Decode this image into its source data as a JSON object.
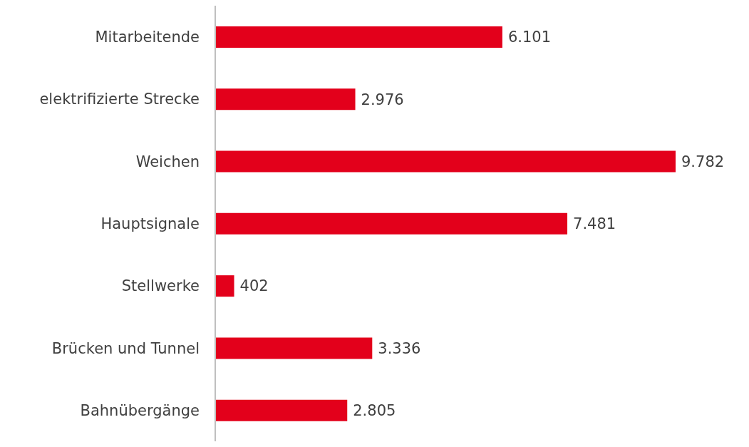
{
  "chart_data": {
    "type": "bar",
    "orientation": "horizontal",
    "categories": [
      "Mitarbeitende",
      "elektrifizierte Strecke",
      "Weichen",
      "Hauptsignale",
      "Stellwerke",
      "Brücken und Tunnel",
      "Bahnübergänge"
    ],
    "values": [
      6101,
      2976,
      9782,
      7481,
      402,
      3336,
      2805
    ],
    "value_labels": [
      "6.101",
      "2.976",
      "9.782",
      "7.481",
      "402",
      "3.336",
      "2.805"
    ],
    "color": "#e3001b",
    "grid": false,
    "legend": false
  }
}
